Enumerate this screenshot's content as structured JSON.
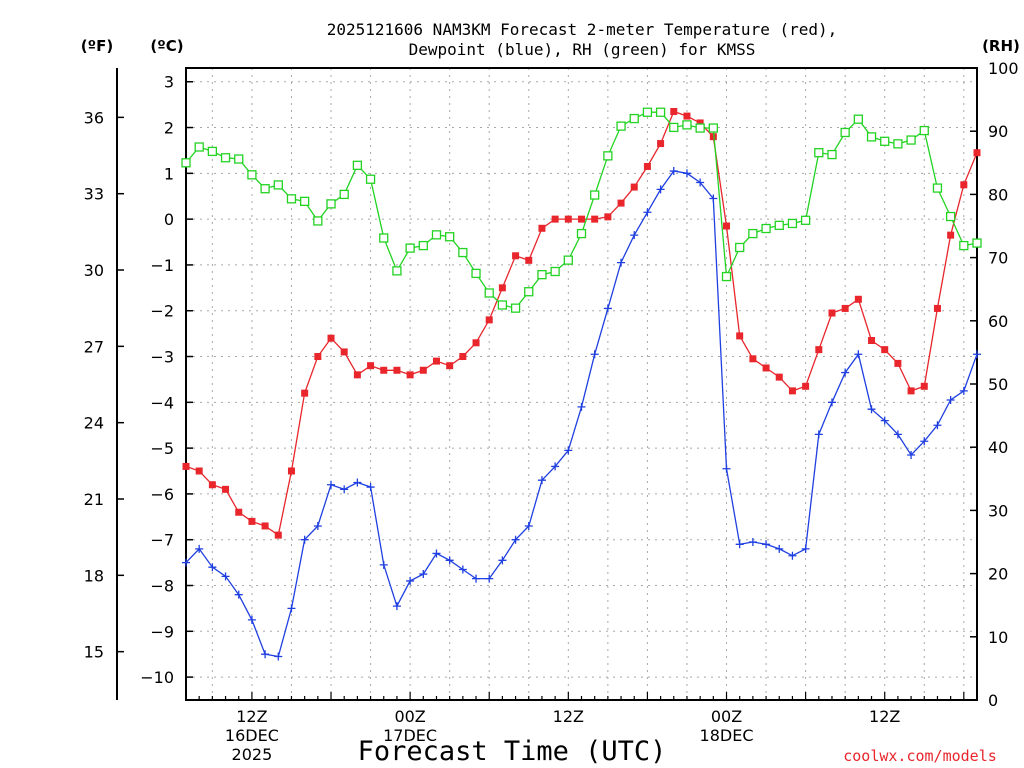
{
  "chart_data": {
    "type": "line",
    "title_line1": "2025121606 NAM3KM Forecast 2-meter Temperature (red),",
    "title_line2": "Dewpoint (blue), RH (green) for KMSS",
    "xlabel": "Forecast Time (UTC)",
    "unit_f": "(ºF)",
    "unit_c": "(ºC)",
    "unit_rh": "(RH)",
    "watermark": "coolwx.com/models",
    "x_start_hour": 7,
    "x_step_hours": 1,
    "xlim_hours": [
      7,
      67
    ],
    "ylim_c": [
      -10.5,
      3.3
    ],
    "ylim_rh": [
      0,
      100
    ],
    "x_ticks": [
      {
        "hour": 12,
        "line1": "12Z",
        "line2": "16DEC",
        "line3": "2025"
      },
      {
        "hour": 24,
        "line1": "00Z",
        "line2": "17DEC",
        "line3": ""
      },
      {
        "hour": 36,
        "line1": "12Z",
        "line2": "",
        "line3": ""
      },
      {
        "hour": 48,
        "line1": "00Z",
        "line2": "18DEC",
        "line3": ""
      },
      {
        "hour": 60,
        "line1": "12Z",
        "line2": "",
        "line3": ""
      }
    ],
    "y_ticks_c": [
      3,
      2,
      1,
      0,
      -1,
      -2,
      -3,
      -4,
      -5,
      -6,
      -7,
      -8,
      -9,
      -10
    ],
    "y_ticks_c_labels": [
      "3",
      "2",
      "1",
      "0",
      "−1",
      "−2",
      "−3",
      "−4",
      "−5",
      "−6",
      "−7",
      "−8",
      "−9",
      "−10"
    ],
    "y_ticks_f": [
      36,
      33,
      30,
      27,
      24,
      21,
      18,
      15
    ],
    "y_ticks_rh": [
      100,
      90,
      80,
      70,
      60,
      50,
      40,
      30,
      20,
      10,
      0
    ],
    "series": [
      {
        "name": "Temperature",
        "color": "#e8262c",
        "marker": "filled-square",
        "values": [
          -5.4,
          -5.5,
          -5.8,
          -5.9,
          -6.4,
          -6.6,
          -6.7,
          -6.9,
          -5.5,
          -3.8,
          -3.0,
          -2.6,
          -2.9,
          -3.4,
          -3.2,
          -3.3,
          -3.3,
          -3.4,
          -3.3,
          -3.1,
          -3.2,
          -3.0,
          -2.7,
          -2.2,
          -1.5,
          -0.8,
          -0.9,
          -0.2,
          0.0,
          0.0,
          0.0,
          0.0,
          0.05,
          0.35,
          0.7,
          1.15,
          1.65,
          2.35,
          2.25,
          2.1,
          1.8,
          -0.15,
          -2.55,
          -3.05,
          -3.25,
          -3.45,
          -3.75,
          -3.65,
          -2.85,
          -2.05,
          -1.95,
          -1.75,
          -2.65,
          -2.85,
          -3.15,
          -3.75,
          -3.65,
          -1.95,
          -0.35,
          0.75,
          1.45
        ]
      },
      {
        "name": "Dewpoint",
        "color": "#1f3fe0",
        "marker": "plus",
        "values": [
          -7.5,
          -7.2,
          -7.6,
          -7.8,
          -8.2,
          -8.75,
          -9.5,
          -9.55,
          -8.5,
          -7.0,
          -6.7,
          -5.8,
          -5.9,
          -5.75,
          -5.85,
          -7.55,
          -8.45,
          -7.9,
          -7.75,
          -7.3,
          -7.45,
          -7.65,
          -7.85,
          -7.85,
          -7.45,
          -7.0,
          -6.7,
          -5.7,
          -5.4,
          -5.05,
          -4.1,
          -2.95,
          -1.95,
          -0.95,
          -0.35,
          0.15,
          0.65,
          1.05,
          1.0,
          0.8,
          0.45,
          -5.45,
          -7.1,
          -7.05,
          -7.1,
          -7.2,
          -7.35,
          -7.2,
          -4.7,
          -4.0,
          -3.35,
          -2.95,
          -4.15,
          -4.4,
          -4.7,
          -5.15,
          -4.85,
          -4.5,
          -3.95,
          -3.75,
          -2.95
        ]
      },
      {
        "name": "RH",
        "color": "#22d322",
        "marker": "open-square",
        "values": [
          85,
          87.5,
          86.8,
          85.8,
          85.6,
          83.1,
          80.9,
          81.5,
          79.3,
          78.9,
          75.8,
          78.5,
          80.0,
          84.6,
          82.4,
          73.1,
          67.9,
          71.5,
          71.9,
          73.6,
          73.3,
          70.8,
          67.5,
          64.4,
          62.5,
          62.0,
          64.6,
          67.3,
          67.8,
          69.6,
          73.8,
          79.9,
          86.1,
          90.8,
          92.0,
          93.0,
          93.0,
          90.6,
          91.0,
          90.5,
          90.5,
          67.0,
          71.6,
          73.8,
          74.6,
          75.1,
          75.4,
          75.9,
          86.6,
          86.3,
          89.8,
          91.9,
          89.1,
          88.4,
          88.0,
          88.6,
          90.1,
          81.0,
          76.5,
          71.9,
          72.3
        ]
      }
    ]
  }
}
